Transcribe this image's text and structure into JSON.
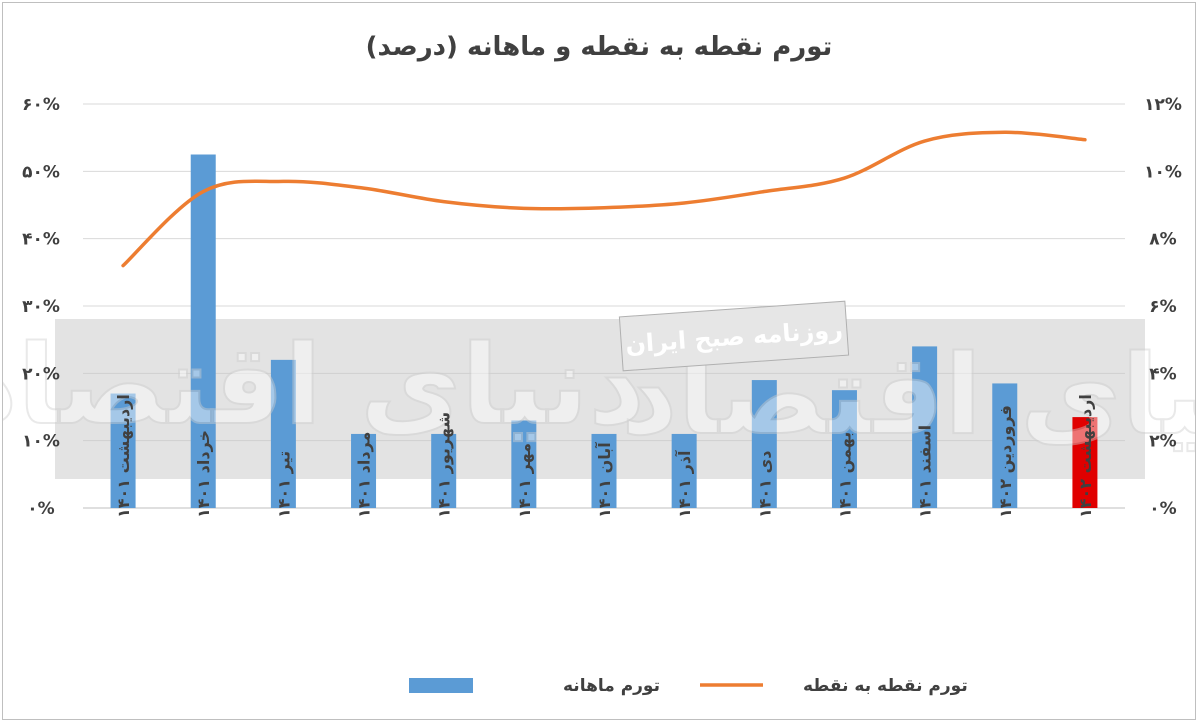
{
  "chart_data": {
    "type": "bar+line",
    "title": "تورم نقطه به نقطه و ماهانه (درصد)",
    "categories": [
      "اردیبهشت ۱۴۰۱",
      "خرداد ۱۴۰۱",
      "تیر ۱۴۰۱",
      "مرداد ۱۴۰۱",
      "شهریور ۱۴۰۱",
      "مهر ۱۴۰۱",
      "آبان ۱۴۰۱",
      "آذر ۱۴۰۱",
      "دی ۱۴۰۱",
      "بهمن ۱۴۰۱",
      "اسفند ۱۴۰۱",
      "فروردین ۱۴۰۲",
      "اردیبهشت ۱۴۰۲"
    ],
    "series": [
      {
        "name": "تورم ماهانه",
        "type": "bar",
        "axis": "right",
        "color": "#5B9BD5",
        "values": [
          3.4,
          10.5,
          4.4,
          2.2,
          2.2,
          2.6,
          2.2,
          2.2,
          3.8,
          3.5,
          4.8,
          3.7,
          2.7
        ],
        "highlight_last_color": "#E00000"
      },
      {
        "name": "تورم نقطه به نقطه",
        "type": "line",
        "axis": "left",
        "color": "#ED7D31",
        "values": [
          36,
          47,
          48.5,
          47.5,
          45.5,
          44.5,
          44.6,
          45.3,
          47,
          49,
          54.5,
          55.8,
          54.7
        ]
      }
    ],
    "y_left": {
      "min": 0,
      "max": 60,
      "ticks": [
        "۰%",
        "۱۰%",
        "۲۰%",
        "۳۰%",
        "۴۰%",
        "۵۰%",
        "۶۰%"
      ]
    },
    "y_right": {
      "min": 0,
      "max": 12,
      "ticks": [
        "۰%",
        "۲%",
        "۴%",
        "۶%",
        "۸%",
        "۱۰%",
        "۱۲%"
      ]
    },
    "grid": true,
    "legend_position": "bottom"
  },
  "watermark": {
    "main": "دنیای اقتصاد",
    "sub": "روزنامه صبح ایران"
  }
}
